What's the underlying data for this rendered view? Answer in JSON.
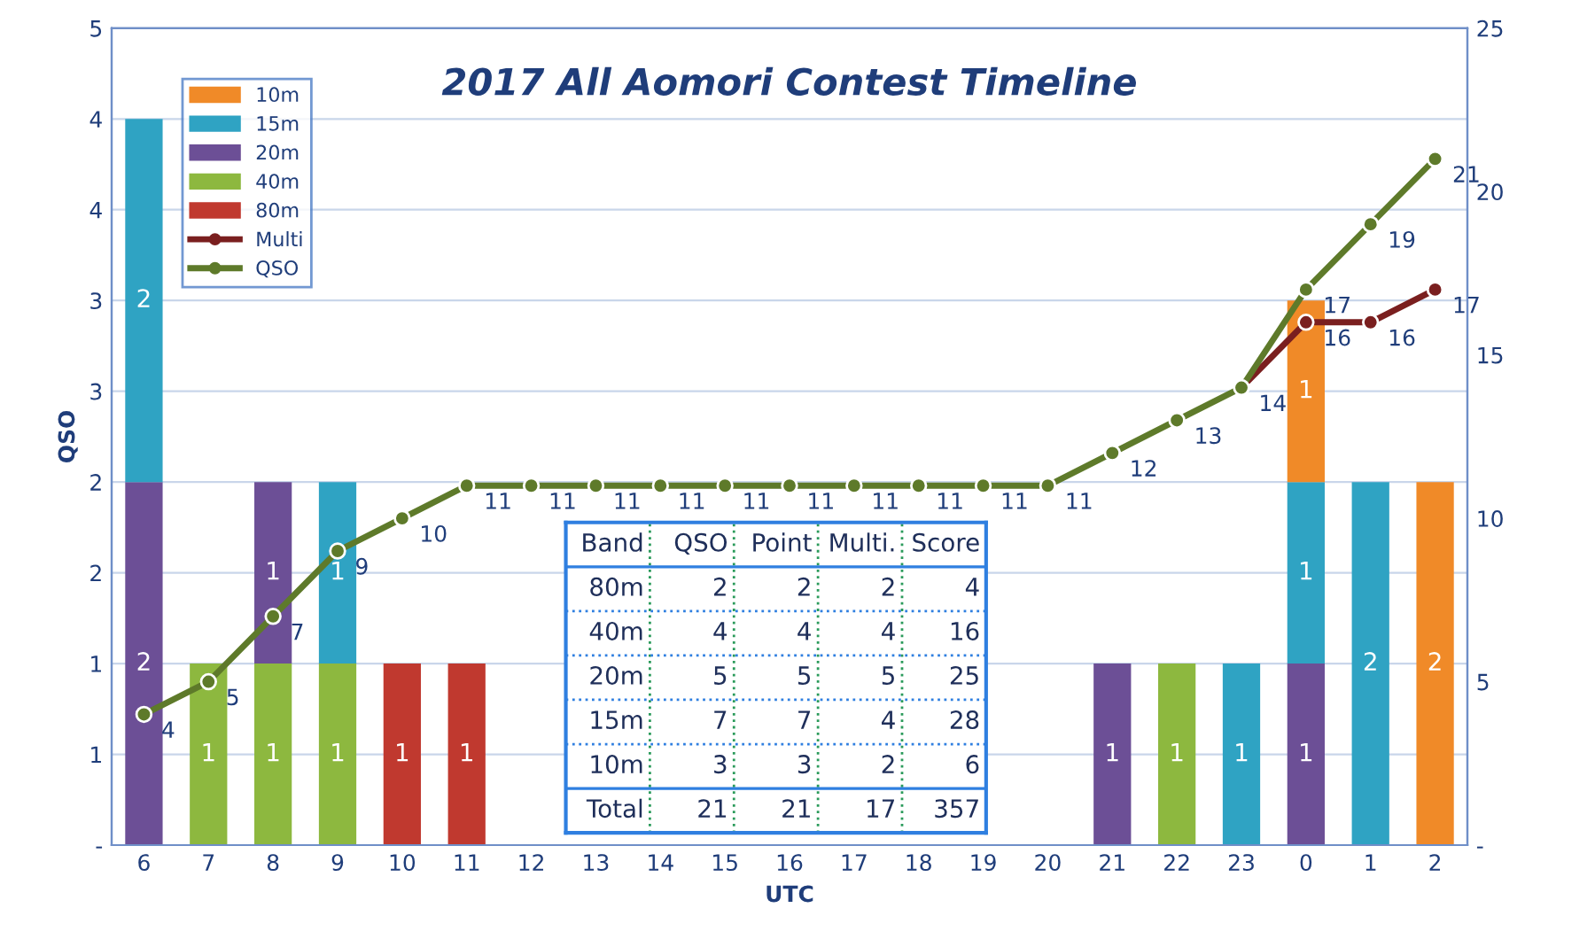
{
  "chart_data": {
    "type": "bar",
    "stacked": true,
    "title": "2017 All Aomori Contest Timeline",
    "xlabel": "UTC",
    "ylabel": "QSO",
    "categories": [
      "6",
      "7",
      "8",
      "9",
      "10",
      "11",
      "12",
      "13",
      "14",
      "15",
      "16",
      "17",
      "18",
      "19",
      "20",
      "21",
      "22",
      "23",
      "0",
      "1",
      "2"
    ],
    "series": [
      {
        "name": "80m",
        "color": "#c0392f",
        "values": [
          null,
          null,
          null,
          null,
          1,
          1,
          null,
          null,
          null,
          null,
          null,
          null,
          null,
          null,
          null,
          null,
          null,
          null,
          null,
          null,
          null
        ]
      },
      {
        "name": "40m",
        "color": "#8db83f",
        "values": [
          null,
          1,
          1,
          1,
          null,
          null,
          null,
          null,
          null,
          null,
          null,
          null,
          null,
          null,
          null,
          null,
          1,
          null,
          null,
          null,
          null
        ]
      },
      {
        "name": "20m",
        "color": "#6c4f96",
        "values": [
          2,
          null,
          1,
          null,
          null,
          null,
          null,
          null,
          null,
          null,
          null,
          null,
          null,
          null,
          null,
          1,
          null,
          null,
          1,
          null,
          null
        ]
      },
      {
        "name": "15m",
        "color": "#2fa3c3",
        "values": [
          2,
          null,
          null,
          1,
          null,
          null,
          null,
          null,
          null,
          null,
          null,
          null,
          null,
          null,
          null,
          null,
          null,
          1,
          1,
          2,
          null
        ]
      },
      {
        "name": "10m",
        "color": "#f08a28",
        "values": [
          null,
          null,
          null,
          null,
          null,
          null,
          null,
          null,
          null,
          null,
          null,
          null,
          null,
          null,
          null,
          null,
          null,
          null,
          1,
          null,
          2
        ]
      },
      {
        "name": "Multi",
        "type": "line",
        "axis": "y2",
        "color": "#7a1f1f",
        "values": [
          null,
          null,
          null,
          null,
          null,
          null,
          null,
          null,
          null,
          null,
          null,
          null,
          null,
          null,
          null,
          null,
          null,
          14,
          16,
          16,
          17
        ],
        "value_labels": [
          null,
          null,
          null,
          null,
          null,
          null,
          null,
          null,
          null,
          null,
          null,
          null,
          null,
          null,
          null,
          null,
          null,
          null,
          "16",
          "16",
          "17"
        ]
      },
      {
        "name": "QSO",
        "type": "line",
        "axis": "y2",
        "color": "#5e7a2a",
        "values": [
          4,
          5,
          7,
          9,
          10,
          11,
          11,
          11,
          11,
          11,
          11,
          11,
          11,
          11,
          11,
          12,
          13,
          14,
          17,
          19,
          21
        ]
      }
    ],
    "ylim": [
      0,
      4.5
    ],
    "yticks": [
      {
        "value": 0,
        "label": "-"
      },
      {
        "value": 0.5,
        "label": "1"
      },
      {
        "value": 1,
        "label": "1"
      },
      {
        "value": 1.5,
        "label": "2"
      },
      {
        "value": 2,
        "label": "2"
      },
      {
        "value": 2.5,
        "label": "3"
      },
      {
        "value": 3,
        "label": "3"
      },
      {
        "value": 3.5,
        "label": "4"
      },
      {
        "value": 4,
        "label": "4"
      },
      {
        "value": 4.5,
        "label": "5"
      }
    ],
    "y2lim": [
      0,
      25
    ],
    "y2ticks": [
      {
        "value": 0,
        "label": "-"
      },
      5,
      10,
      15,
      20,
      25
    ],
    "data_labels": true,
    "grid": "y",
    "legend": "top left",
    "marker": "circle",
    "annotations": [
      "Band",
      "QSO",
      "Point",
      "Multi.",
      "Score",
      "80m",
      "2",
      "2",
      "2",
      "4",
      "40m",
      "4",
      "4",
      "4",
      "16",
      "20m",
      "5",
      "5",
      "5",
      "25",
      "15m",
      "7",
      "7",
      "4",
      "28",
      "10m",
      "3",
      "3",
      "2",
      "6",
      "Total",
      "21",
      "21",
      "17",
      "357"
    ]
  }
}
